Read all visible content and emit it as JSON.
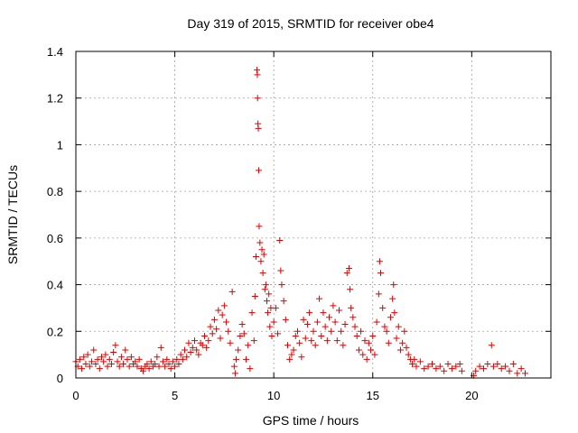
{
  "chart_data": {
    "type": "scatter",
    "title": "Day 319 of 2015, SRMTID for receiver obe4",
    "xlabel": "GPS time / hours",
    "ylabel": "SRMTID / TECUs",
    "xlim": [
      0,
      24
    ],
    "ylim": [
      0,
      1.4
    ],
    "xticks": [
      0,
      5,
      10,
      15,
      20
    ],
    "xtick_labels": [
      "0",
      "5",
      "10",
      "15",
      "20"
    ],
    "yticks": [
      0,
      0.2,
      0.4,
      0.6,
      0.8,
      1.0,
      1.2,
      1.4
    ],
    "ytick_labels": [
      "0",
      "0.2",
      "0.4",
      "0.6",
      "0.8",
      "1",
      "1.2",
      "1.4"
    ],
    "grid": true,
    "marker": "plus",
    "color": "#e00000",
    "series": [
      {
        "name": "obe4",
        "points": [
          [
            0.0,
            0.07
          ],
          [
            0.1,
            0.05
          ],
          [
            0.2,
            0.08
          ],
          [
            0.3,
            0.04
          ],
          [
            0.4,
            0.09
          ],
          [
            0.5,
            0.06
          ],
          [
            0.6,
            0.1
          ],
          [
            0.7,
            0.05
          ],
          [
            0.8,
            0.07
          ],
          [
            0.9,
            0.12
          ],
          [
            1.0,
            0.06
          ],
          [
            1.1,
            0.08
          ],
          [
            1.2,
            0.04
          ],
          [
            1.3,
            0.09
          ],
          [
            1.4,
            0.07
          ],
          [
            1.5,
            0.1
          ],
          [
            1.6,
            0.05
          ],
          [
            1.7,
            0.08
          ],
          [
            1.8,
            0.06
          ],
          [
            1.9,
            0.11
          ],
          [
            2.0,
            0.14
          ],
          [
            2.1,
            0.07
          ],
          [
            2.2,
            0.05
          ],
          [
            2.3,
            0.09
          ],
          [
            2.4,
            0.06
          ],
          [
            2.5,
            0.12
          ],
          [
            2.6,
            0.08
          ],
          [
            2.7,
            0.05
          ],
          [
            2.8,
            0.09
          ],
          [
            2.9,
            0.06
          ],
          [
            3.0,
            0.07
          ],
          [
            3.1,
            0.05
          ],
          [
            3.2,
            0.08
          ],
          [
            3.3,
            0.04
          ],
          [
            3.4,
            0.03
          ],
          [
            3.5,
            0.05
          ],
          [
            3.6,
            0.06
          ],
          [
            3.7,
            0.04
          ],
          [
            3.8,
            0.07
          ],
          [
            3.9,
            0.05
          ],
          [
            4.0,
            0.06
          ],
          [
            4.1,
            0.09
          ],
          [
            4.2,
            0.05
          ],
          [
            4.3,
            0.13
          ],
          [
            4.4,
            0.07
          ],
          [
            4.5,
            0.05
          ],
          [
            4.6,
            0.08
          ],
          [
            4.7,
            0.06
          ],
          [
            4.8,
            0.04
          ],
          [
            4.9,
            0.07
          ],
          [
            5.0,
            0.05
          ],
          [
            5.1,
            0.08
          ],
          [
            5.2,
            0.06
          ],
          [
            5.3,
            0.1
          ],
          [
            5.4,
            0.08
          ],
          [
            5.5,
            0.12
          ],
          [
            5.6,
            0.09
          ],
          [
            5.7,
            0.15
          ],
          [
            5.8,
            0.11
          ],
          [
            5.9,
            0.13
          ],
          [
            6.0,
            0.16
          ],
          [
            6.1,
            0.12
          ],
          [
            6.2,
            0.1
          ],
          [
            6.3,
            0.15
          ],
          [
            6.4,
            0.14
          ],
          [
            6.5,
            0.18
          ],
          [
            6.6,
            0.13
          ],
          [
            6.7,
            0.16
          ],
          [
            6.8,
            0.22
          ],
          [
            6.9,
            0.19
          ],
          [
            7.0,
            0.25
          ],
          [
            7.1,
            0.21
          ],
          [
            7.2,
            0.29
          ],
          [
            7.3,
            0.17
          ],
          [
            7.4,
            0.27
          ],
          [
            7.5,
            0.31
          ],
          [
            7.6,
            0.24
          ],
          [
            7.7,
            0.2
          ],
          [
            7.8,
            0.15
          ],
          [
            7.9,
            0.37
          ],
          [
            8.0,
            0.05
          ],
          [
            8.05,
            0.02
          ],
          [
            8.1,
            0.08
          ],
          [
            8.2,
            0.12
          ],
          [
            8.3,
            0.18
          ],
          [
            8.4,
            0.23
          ],
          [
            8.5,
            0.19
          ],
          [
            8.6,
            0.08
          ],
          [
            8.7,
            0.14
          ],
          [
            8.8,
            0.04
          ],
          [
            8.9,
            0.28
          ],
          [
            9.0,
            0.16
          ],
          [
            9.05,
            0.35
          ],
          [
            9.1,
            0.52
          ],
          [
            9.15,
            1.32
          ],
          [
            9.17,
            1.3
          ],
          [
            9.18,
            1.2
          ],
          [
            9.2,
            1.09
          ],
          [
            9.22,
            1.07
          ],
          [
            9.24,
            0.89
          ],
          [
            9.26,
            0.65
          ],
          [
            9.3,
            0.58
          ],
          [
            9.35,
            0.5
          ],
          [
            9.4,
            0.55
          ],
          [
            9.45,
            0.45
          ],
          [
            9.5,
            0.53
          ],
          [
            9.55,
            0.38
          ],
          [
            9.6,
            0.4
          ],
          [
            9.65,
            0.33
          ],
          [
            9.7,
            0.28
          ],
          [
            9.75,
            0.36
          ],
          [
            9.8,
            0.22
          ],
          [
            9.85,
            0.3
          ],
          [
            9.9,
            0.18
          ],
          [
            10.0,
            0.24
          ],
          [
            10.1,
            0.3
          ],
          [
            10.2,
            0.19
          ],
          [
            10.3,
            0.59
          ],
          [
            10.35,
            0.46
          ],
          [
            10.4,
            0.4
          ],
          [
            10.5,
            0.33
          ],
          [
            10.6,
            0.25
          ],
          [
            10.7,
            0.14
          ],
          [
            10.8,
            0.08
          ],
          [
            10.9,
            0.1
          ],
          [
            11.0,
            0.12
          ],
          [
            11.1,
            0.18
          ],
          [
            11.2,
            0.2
          ],
          [
            11.3,
            0.15
          ],
          [
            11.4,
            0.09
          ],
          [
            11.5,
            0.25
          ],
          [
            11.6,
            0.17
          ],
          [
            11.7,
            0.23
          ],
          [
            11.8,
            0.28
          ],
          [
            11.9,
            0.16
          ],
          [
            12.0,
            0.2
          ],
          [
            12.1,
            0.14
          ],
          [
            12.2,
            0.24
          ],
          [
            12.3,
            0.34
          ],
          [
            12.4,
            0.18
          ],
          [
            12.5,
            0.28
          ],
          [
            12.6,
            0.22
          ],
          [
            12.7,
            0.16
          ],
          [
            12.8,
            0.26
          ],
          [
            12.9,
            0.2
          ],
          [
            13.0,
            0.31
          ],
          [
            13.1,
            0.24
          ],
          [
            13.2,
            0.16
          ],
          [
            13.3,
            0.29
          ],
          [
            13.4,
            0.2
          ],
          [
            13.5,
            0.14
          ],
          [
            13.6,
            0.23
          ],
          [
            13.7,
            0.45
          ],
          [
            13.8,
            0.47
          ],
          [
            13.85,
            0.38
          ],
          [
            13.9,
            0.3
          ],
          [
            14.0,
            0.26
          ],
          [
            14.1,
            0.22
          ],
          [
            14.2,
            0.18
          ],
          [
            14.3,
            0.12
          ],
          [
            14.4,
            0.2
          ],
          [
            14.5,
            0.1
          ],
          [
            14.6,
            0.16
          ],
          [
            14.7,
            0.08
          ],
          [
            14.8,
            0.15
          ],
          [
            14.9,
            0.12
          ],
          [
            15.0,
            0.18
          ],
          [
            15.1,
            0.1
          ],
          [
            15.2,
            0.24
          ],
          [
            15.3,
            0.36
          ],
          [
            15.35,
            0.5
          ],
          [
            15.4,
            0.45
          ],
          [
            15.5,
            0.3
          ],
          [
            15.6,
            0.22
          ],
          [
            15.7,
            0.2
          ],
          [
            15.8,
            0.15
          ],
          [
            15.9,
            0.26
          ],
          [
            16.0,
            0.34
          ],
          [
            16.05,
            0.4
          ],
          [
            16.1,
            0.28
          ],
          [
            16.2,
            0.17
          ],
          [
            16.3,
            0.22
          ],
          [
            16.4,
            0.12
          ],
          [
            16.5,
            0.15
          ],
          [
            16.6,
            0.2
          ],
          [
            16.7,
            0.13
          ],
          [
            16.8,
            0.1
          ],
          [
            16.9,
            0.08
          ],
          [
            17.0,
            0.06
          ],
          [
            17.1,
            0.08
          ],
          [
            17.2,
            0.05
          ],
          [
            17.4,
            0.07
          ],
          [
            17.6,
            0.04
          ],
          [
            17.8,
            0.05
          ],
          [
            18.0,
            0.06
          ],
          [
            18.2,
            0.04
          ],
          [
            18.4,
            0.05
          ],
          [
            18.6,
            0.03
          ],
          [
            18.8,
            0.06
          ],
          [
            19.0,
            0.04
          ],
          [
            19.2,
            0.05
          ],
          [
            19.4,
            0.06
          ],
          [
            19.5,
            0.03
          ],
          [
            20.1,
            0.01
          ],
          [
            20.2,
            0.03
          ],
          [
            20.4,
            0.05
          ],
          [
            20.6,
            0.04
          ],
          [
            20.8,
            0.06
          ],
          [
            21.0,
            0.14
          ],
          [
            21.1,
            0.05
          ],
          [
            21.3,
            0.06
          ],
          [
            21.5,
            0.04
          ],
          [
            21.7,
            0.05
          ],
          [
            21.9,
            0.03
          ],
          [
            22.1,
            0.06
          ],
          [
            22.3,
            0.02
          ],
          [
            22.5,
            0.04
          ],
          [
            22.7,
            0.02
          ]
        ]
      }
    ]
  }
}
